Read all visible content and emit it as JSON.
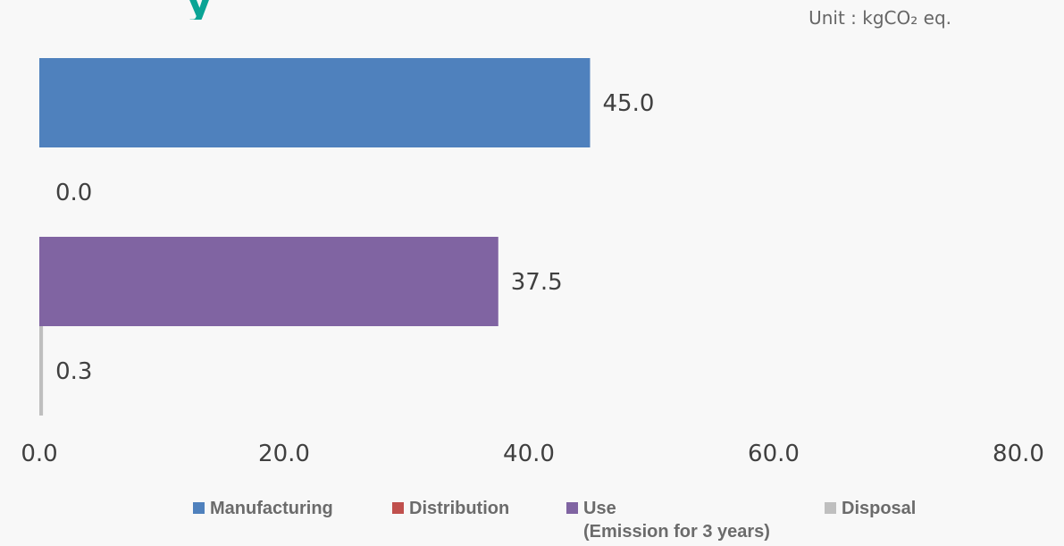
{
  "unit_label": "Unit : kgCO₂ eq.",
  "chart_data": {
    "type": "bar",
    "orientation": "horizontal",
    "categories": [
      "Manufacturing",
      "Distribution",
      "Use",
      "Disposal"
    ],
    "values": [
      45.0,
      0.0,
      37.5,
      0.3
    ],
    "value_labels": [
      "45.0",
      "0.0",
      "37.5",
      "0.3"
    ],
    "colors": [
      "#4f81bd",
      "#c0504d",
      "#8064a2",
      "#bfbfbf"
    ],
    "xlim": [
      0,
      80
    ],
    "xticks": [
      "0.0",
      "20.0",
      "40.0",
      "60.0",
      "80.0"
    ],
    "grid": false,
    "legend": {
      "placement": "bottom",
      "entries": [
        {
          "label": "Manufacturing",
          "sub": ""
        },
        {
          "label": "Distribution",
          "sub": ""
        },
        {
          "label": "Use",
          "sub": "(Emission for 3 years)"
        },
        {
          "label": "Disposal",
          "sub": ""
        }
      ]
    }
  }
}
